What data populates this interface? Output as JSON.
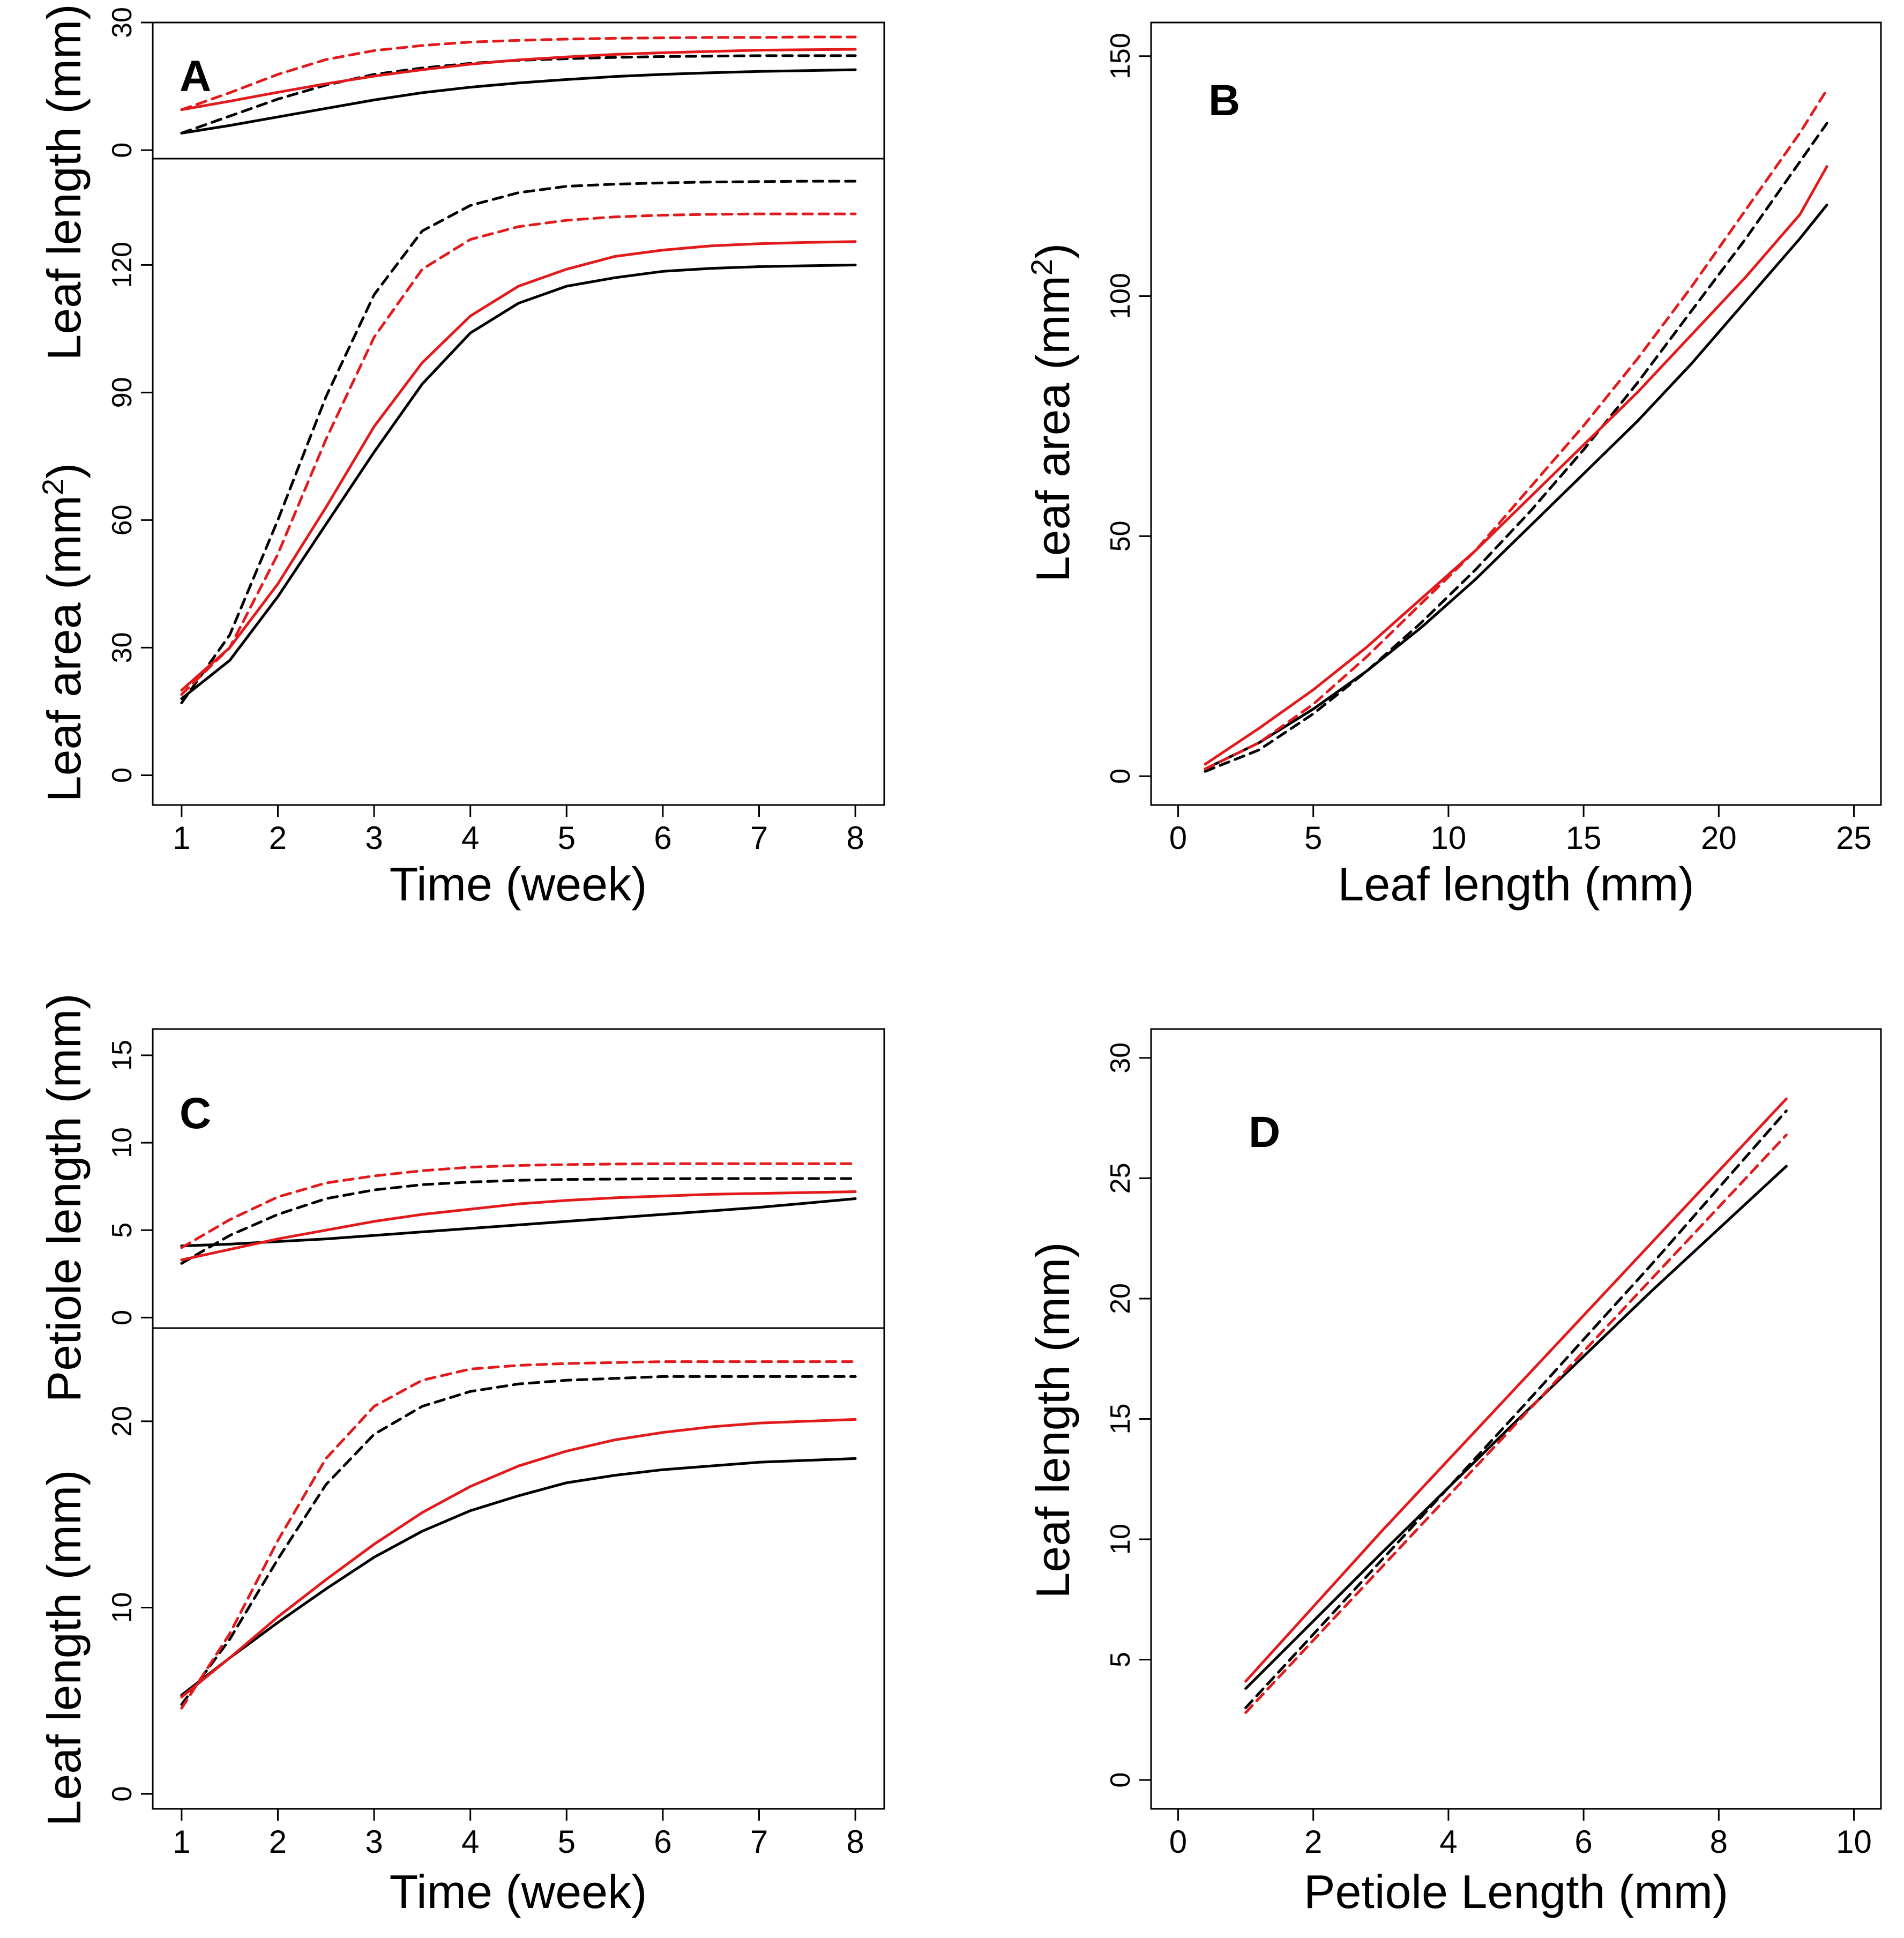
{
  "colors": {
    "black": "#000000",
    "red": "#e31a1c"
  },
  "chart_data": [
    {
      "panel": "A",
      "type": "line",
      "subplots": [
        {
          "id": "A-top",
          "ylabel": "Leaf length (mm)",
          "ylim": [
            -2,
            30
          ],
          "yticks": [
            "0",
            "30"
          ],
          "xlim": [
            0.7,
            8.3
          ],
          "series": [
            {
              "name": "black solid",
              "color": "black",
              "dash": false,
              "x": [
                1,
                1.5,
                2,
                2.5,
                3,
                3.5,
                4,
                4.5,
                5,
                5.5,
                6,
                6.5,
                7,
                7.5,
                8
              ],
              "y": [
                4.0,
                5.8,
                7.8,
                9.8,
                11.8,
                13.5,
                14.8,
                15.8,
                16.6,
                17.3,
                17.8,
                18.2,
                18.5,
                18.7,
                18.9
              ]
            },
            {
              "name": "black dashed",
              "color": "black",
              "dash": true,
              "x": [
                1,
                1.5,
                2,
                2.5,
                3,
                3.5,
                4,
                4.5,
                5,
                5.5,
                6,
                6.5,
                7,
                7.5,
                8
              ],
              "y": [
                4.0,
                8.0,
                12.0,
                15.3,
                17.8,
                19.3,
                20.4,
                21.1,
                21.5,
                21.8,
                22.0,
                22.1,
                22.2,
                22.2,
                22.2
              ]
            },
            {
              "name": "red solid",
              "color": "red",
              "dash": false,
              "x": [
                1,
                1.5,
                2,
                2.5,
                3,
                3.5,
                4,
                4.5,
                5,
                5.5,
                6,
                6.5,
                7,
                7.5,
                8
              ],
              "y": [
                9.5,
                11.5,
                13.6,
                15.6,
                17.4,
                18.9,
                20.2,
                21.2,
                21.9,
                22.5,
                22.9,
                23.2,
                23.5,
                23.6,
                23.7
              ]
            },
            {
              "name": "red dashed",
              "color": "red",
              "dash": true,
              "x": [
                1,
                1.5,
                2,
                2.5,
                3,
                3.5,
                4,
                4.5,
                5,
                5.5,
                6,
                6.5,
                7,
                7.5,
                8
              ],
              "y": [
                9.5,
                13.5,
                17.8,
                21.3,
                23.4,
                24.6,
                25.4,
                25.8,
                26.1,
                26.3,
                26.4,
                26.5,
                26.5,
                26.6,
                26.6
              ]
            }
          ]
        },
        {
          "id": "A-bottom",
          "ylabel": "Leaf area (mm²)",
          "ylim": [
            -7,
            145
          ],
          "yticks": [
            "0",
            "30",
            "60",
            "90",
            "120"
          ],
          "xlabel": "Time (week)",
          "xlim": [
            0.7,
            8.3
          ],
          "xticks": [
            "1",
            "2",
            "3",
            "4",
            "5",
            "6",
            "7",
            "8"
          ],
          "series": [
            {
              "name": "black solid",
              "color": "black",
              "dash": false,
              "x": [
                1,
                1.5,
                2,
                2.5,
                3,
                3.5,
                4,
                4.5,
                5,
                5.5,
                6,
                6.5,
                7,
                7.5,
                8
              ],
              "y": [
                18,
                27,
                42,
                59,
                76,
                92,
                104,
                111,
                115,
                117,
                118.5,
                119.2,
                119.6,
                119.8,
                120
              ]
            },
            {
              "name": "black dashed",
              "color": "black",
              "dash": true,
              "x": [
                1,
                1.5,
                2,
                2.5,
                3,
                3.5,
                4,
                4.5,
                5,
                5.5,
                6,
                6.5,
                7,
                7.5,
                8
              ],
              "y": [
                17,
                33,
                60,
                89,
                113,
                128,
                134,
                137,
                138.5,
                139,
                139.3,
                139.5,
                139.6,
                139.7,
                139.7
              ]
            },
            {
              "name": "red solid",
              "color": "red",
              "dash": false,
              "x": [
                1,
                1.5,
                2,
                2.5,
                3,
                3.5,
                4,
                4.5,
                5,
                5.5,
                6,
                6.5,
                7,
                7.5,
                8
              ],
              "y": [
                20,
                30,
                45,
                63,
                82,
                97,
                108,
                115,
                119,
                122,
                123.5,
                124.5,
                125,
                125.3,
                125.5
              ]
            },
            {
              "name": "red dashed",
              "color": "red",
              "dash": true,
              "x": [
                1,
                1.5,
                2,
                2.5,
                3,
                3.5,
                4,
                4.5,
                5,
                5.5,
                6,
                6.5,
                7,
                7.5,
                8
              ],
              "y": [
                19,
                30,
                52,
                79,
                103,
                119,
                126,
                129,
                130.5,
                131.3,
                131.7,
                131.9,
                132,
                132,
                132
              ]
            }
          ]
        }
      ]
    },
    {
      "panel": "B",
      "type": "line",
      "xlabel": "Leaf length (mm)",
      "ylabel": "Leaf area (mm²)",
      "xlim": [
        -1,
        26
      ],
      "ylim": [
        -6,
        157
      ],
      "xticks": [
        "0",
        "5",
        "10",
        "15",
        "20",
        "25"
      ],
      "yticks": [
        "0",
        "50",
        "100",
        "150"
      ],
      "series": [
        {
          "name": "black solid",
          "color": "black",
          "dash": false,
          "x": [
            1,
            3,
            5,
            7,
            9,
            11,
            13,
            15,
            17,
            19,
            21,
            23,
            24
          ],
          "y": [
            1.5,
            7,
            14,
            22,
            31,
            41,
            52,
            63,
            74,
            86,
            99,
            112,
            119
          ]
        },
        {
          "name": "black dashed",
          "color": "black",
          "dash": true,
          "x": [
            1,
            3,
            5,
            7,
            9,
            11,
            13,
            15,
            17,
            19,
            21,
            23,
            24
          ],
          "y": [
            1.0,
            5.5,
            13,
            22,
            32,
            43,
            55,
            68,
            82,
            97,
            112,
            128,
            136
          ]
        },
        {
          "name": "red solid",
          "color": "red",
          "dash": false,
          "x": [
            1,
            3,
            5,
            7,
            9,
            11,
            13,
            15,
            17,
            19,
            21,
            23,
            24
          ],
          "y": [
            2.5,
            10,
            18,
            27,
            37,
            47,
            58,
            69,
            80,
            92,
            104,
            117,
            127
          ]
        },
        {
          "name": "red dashed",
          "color": "red",
          "dash": true,
          "x": [
            1,
            3,
            5,
            7,
            9,
            11,
            13,
            15,
            17,
            19,
            21,
            23,
            24
          ],
          "y": [
            1.5,
            7,
            15,
            25,
            36,
            47,
            60,
            73,
            87,
            102,
            118,
            134,
            143
          ]
        }
      ]
    },
    {
      "panel": "C",
      "type": "line",
      "subplots": [
        {
          "id": "C-top",
          "ylabel": "Petiole length (mm)",
          "ylim": [
            -0.6,
            16.5
          ],
          "yticks": [
            "0",
            "5",
            "10",
            "15"
          ],
          "xlim": [
            0.7,
            8.3
          ],
          "series": [
            {
              "name": "black solid",
              "color": "black",
              "dash": false,
              "x": [
                1,
                1.5,
                2,
                2.5,
                3,
                3.5,
                4,
                4.5,
                5,
                5.5,
                6,
                6.5,
                7,
                7.5,
                8
              ],
              "y": [
                4.1,
                4.2,
                4.35,
                4.5,
                4.7,
                4.9,
                5.1,
                5.3,
                5.5,
                5.7,
                5.9,
                6.1,
                6.3,
                6.55,
                6.8
              ]
            },
            {
              "name": "black dashed",
              "color": "black",
              "dash": true,
              "x": [
                1,
                1.5,
                2,
                2.5,
                3,
                3.5,
                4,
                4.5,
                5,
                5.5,
                6,
                6.5,
                7,
                7.5,
                8
              ],
              "y": [
                3.1,
                4.7,
                5.9,
                6.8,
                7.3,
                7.6,
                7.75,
                7.85,
                7.9,
                7.92,
                7.94,
                7.95,
                7.95,
                7.95,
                7.95
              ]
            },
            {
              "name": "red solid",
              "color": "red",
              "dash": false,
              "x": [
                1,
                1.5,
                2,
                2.5,
                3,
                3.5,
                4,
                4.5,
                5,
                5.5,
                6,
                6.5,
                7,
                7.5,
                8
              ],
              "y": [
                3.3,
                3.9,
                4.5,
                5.0,
                5.5,
                5.9,
                6.2,
                6.5,
                6.7,
                6.85,
                6.95,
                7.05,
                7.1,
                7.15,
                7.2
              ]
            },
            {
              "name": "red dashed",
              "color": "red",
              "dash": true,
              "x": [
                1,
                1.5,
                2,
                2.5,
                3,
                3.5,
                4,
                4.5,
                5,
                5.5,
                6,
                6.5,
                7,
                7.5,
                8
              ],
              "y": [
                4.0,
                5.6,
                6.9,
                7.7,
                8.1,
                8.4,
                8.6,
                8.7,
                8.75,
                8.78,
                8.8,
                8.8,
                8.8,
                8.8,
                8.8
              ]
            }
          ]
        },
        {
          "id": "C-bottom",
          "ylabel": "Leaf length (mm)",
          "ylim": [
            -0.8,
            25
          ],
          "yticks": [
            "0",
            "10",
            "20"
          ],
          "xlabel": "Time (week)",
          "xlim": [
            0.7,
            8.3
          ],
          "xticks": [
            "1",
            "2",
            "3",
            "4",
            "5",
            "6",
            "7",
            "8"
          ],
          "series": [
            {
              "name": "black solid",
              "color": "black",
              "dash": false,
              "x": [
                1,
                1.5,
                2,
                2.5,
                3,
                3.5,
                4,
                4.5,
                5,
                5.5,
                6,
                6.5,
                7,
                7.5,
                8
              ],
              "y": [
                5.3,
                7.3,
                9.2,
                11.0,
                12.7,
                14.1,
                15.2,
                16.0,
                16.7,
                17.1,
                17.4,
                17.6,
                17.8,
                17.9,
                18.0
              ]
            },
            {
              "name": "black dashed",
              "color": "black",
              "dash": true,
              "x": [
                1,
                1.5,
                2,
                2.5,
                3,
                3.5,
                4,
                4.5,
                5,
                5.5,
                6,
                6.5,
                7,
                7.5,
                8
              ],
              "y": [
                4.8,
                8.3,
                12.6,
                16.6,
                19.3,
                20.8,
                21.6,
                22.0,
                22.2,
                22.3,
                22.4,
                22.4,
                22.4,
                22.4,
                22.4
              ]
            },
            {
              "name": "red solid",
              "color": "red",
              "dash": false,
              "x": [
                1,
                1.5,
                2,
                2.5,
                3,
                3.5,
                4,
                4.5,
                5,
                5.5,
                6,
                6.5,
                7,
                7.5,
                8
              ],
              "y": [
                5.2,
                7.3,
                9.5,
                11.5,
                13.4,
                15.1,
                16.5,
                17.6,
                18.4,
                19.0,
                19.4,
                19.7,
                19.9,
                20.0,
                20.1
              ]
            },
            {
              "name": "red dashed",
              "color": "red",
              "dash": true,
              "x": [
                1,
                1.5,
                2,
                2.5,
                3,
                3.5,
                4,
                4.5,
                5,
                5.5,
                6,
                6.5,
                7,
                7.5,
                8
              ],
              "y": [
                4.6,
                8.6,
                13.6,
                18.0,
                20.8,
                22.2,
                22.8,
                23.0,
                23.1,
                23.15,
                23.2,
                23.2,
                23.2,
                23.2,
                23.2
              ]
            }
          ]
        }
      ]
    },
    {
      "panel": "D",
      "type": "line",
      "xlabel": "Petiole Length (mm)",
      "ylabel": "Leaf length (mm)",
      "xlim": [
        -0.4,
        10.4
      ],
      "ylim": [
        -1.2,
        31.2
      ],
      "xticks": [
        "0",
        "2",
        "4",
        "6",
        "8",
        "10"
      ],
      "yticks": [
        "0",
        "5",
        "10",
        "15",
        "20",
        "25",
        "30"
      ],
      "series": [
        {
          "name": "black solid",
          "color": "black",
          "dash": false,
          "x": [
            1,
            3,
            5,
            7,
            9
          ],
          "y": [
            3.8,
            9.4,
            14.9,
            20.3,
            25.5
          ]
        },
        {
          "name": "black dashed",
          "color": "black",
          "dash": true,
          "x": [
            1,
            3,
            5,
            7,
            9
          ],
          "y": [
            3.0,
            9.1,
            15.2,
            21.4,
            27.8
          ]
        },
        {
          "name": "red solid",
          "color": "red",
          "dash": false,
          "x": [
            1,
            3,
            5,
            7,
            9
          ],
          "y": [
            4.1,
            10.3,
            16.3,
            22.3,
            28.3
          ]
        },
        {
          "name": "red dashed",
          "color": "red",
          "dash": true,
          "x": [
            1,
            3,
            5,
            7,
            9
          ],
          "y": [
            2.8,
            8.8,
            14.8,
            20.8,
            26.8
          ]
        }
      ]
    }
  ]
}
